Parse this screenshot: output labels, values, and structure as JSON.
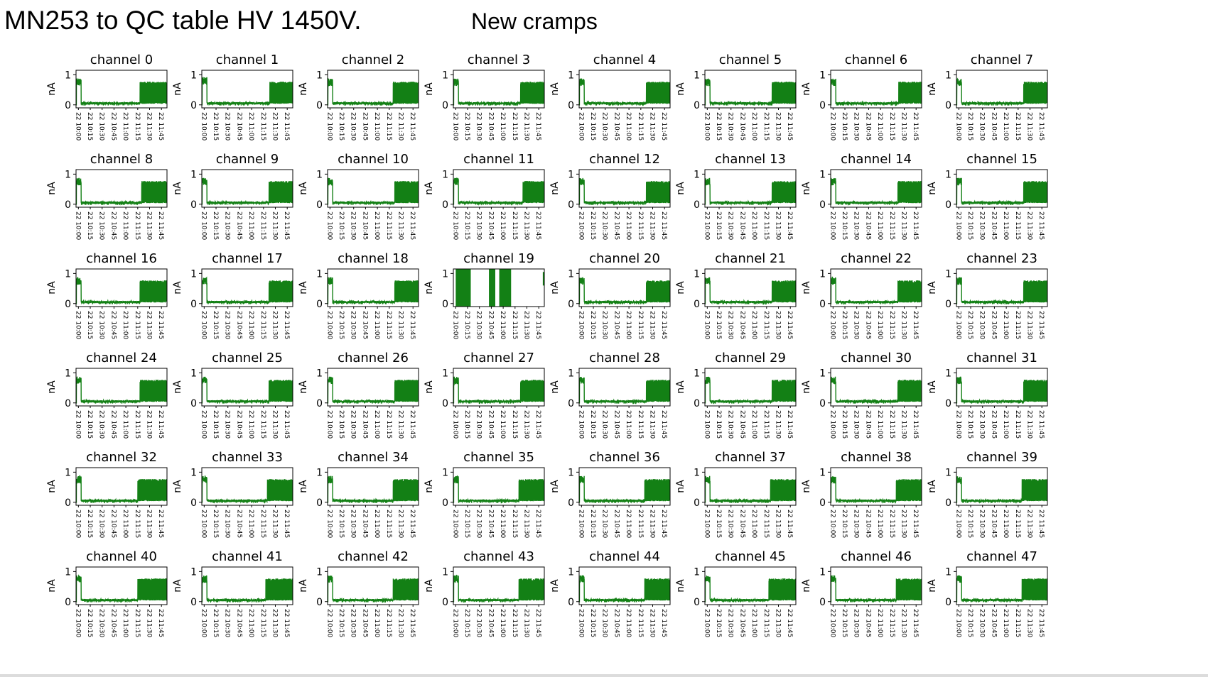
{
  "slide": {
    "title": "MN253 to QC table HV 1450V.",
    "subtitle": "New cramps"
  },
  "chart_data": {
    "type": "line",
    "layout": "grid 6 rows x 8 columns of small multiples",
    "series_color": "#138015",
    "ylabel": "nA",
    "ylim": [
      -0.1,
      1.15
    ],
    "yticks": [
      0,
      1
    ],
    "xticks": [
      "22 10:00",
      "22 10:15",
      "22 10:30",
      "22 10:45",
      "22 11:00",
      "22 11:15",
      "22 11:30",
      "22 11:45"
    ],
    "xlim": [
      "22 09:57",
      "22 11:52"
    ],
    "panels": [
      {
        "title": "channel 0",
        "profile": {
          "start_level": 0.75,
          "start_until": "22 10:02",
          "baseline": 0.05,
          "step_at": "22 11:18",
          "high_level": 0.72
        }
      },
      {
        "title": "channel 1",
        "profile": {
          "start_level": 0.8,
          "start_until": "22 10:02",
          "baseline": 0.05,
          "step_at": "22 11:23",
          "high_level": 0.72
        }
      },
      {
        "title": "channel 2",
        "profile": {
          "start_level": 0.75,
          "start_until": "22 10:02",
          "baseline": 0.05,
          "step_at": "22 11:20",
          "high_level": 0.72
        }
      },
      {
        "title": "channel 3",
        "profile": {
          "start_level": 0.75,
          "start_until": "22 10:02",
          "baseline": 0.05,
          "step_at": "22 11:22",
          "high_level": 0.72
        }
      },
      {
        "title": "channel 4",
        "profile": {
          "start_level": 0.75,
          "start_until": "22 10:02",
          "baseline": 0.05,
          "step_at": "22 11:22",
          "high_level": 0.72
        }
      },
      {
        "title": "channel 5",
        "profile": {
          "start_level": 0.75,
          "start_until": "22 10:02",
          "baseline": 0.05,
          "step_at": "22 11:22",
          "high_level": 0.72
        }
      },
      {
        "title": "channel 6",
        "profile": {
          "start_level": 0.75,
          "start_until": "22 10:02",
          "baseline": 0.05,
          "step_at": "22 11:23",
          "high_level": 0.72
        }
      },
      {
        "title": "channel 7",
        "profile": {
          "start_level": 0.75,
          "start_until": "22 10:02",
          "baseline": 0.05,
          "step_at": "22 11:22",
          "high_level": 0.72
        }
      },
      {
        "title": "channel 8",
        "profile": {
          "start_level": 0.75,
          "start_until": "22 10:02",
          "baseline": 0.05,
          "step_at": "22 11:20",
          "high_level": 0.72
        }
      },
      {
        "title": "channel 9",
        "profile": {
          "start_level": 0.75,
          "start_until": "22 10:02",
          "baseline": 0.05,
          "step_at": "22 11:22",
          "high_level": 0.72
        }
      },
      {
        "title": "channel 10",
        "profile": {
          "start_level": 0.75,
          "start_until": "22 10:02",
          "baseline": 0.05,
          "step_at": "22 11:22",
          "high_level": 0.72
        }
      },
      {
        "title": "channel 11",
        "profile": {
          "start_level": 0.75,
          "start_until": "22 10:02",
          "baseline": 0.05,
          "step_at": "22 11:25",
          "high_level": 0.72
        }
      },
      {
        "title": "channel 12",
        "profile": {
          "start_level": 0.75,
          "start_until": "22 10:02",
          "baseline": 0.05,
          "step_at": "22 11:22",
          "high_level": 0.72
        }
      },
      {
        "title": "channel 13",
        "profile": {
          "start_level": 0.75,
          "start_until": "22 10:02",
          "baseline": 0.05,
          "step_at": "22 11:22",
          "high_level": 0.72
        }
      },
      {
        "title": "channel 14",
        "profile": {
          "start_level": 0.75,
          "start_until": "22 10:02",
          "baseline": 0.05,
          "step_at": "22 11:22",
          "high_level": 0.72
        }
      },
      {
        "title": "channel 15",
        "profile": {
          "start_level": 0.75,
          "start_until": "22 10:02",
          "baseline": 0.05,
          "step_at": "22 11:22",
          "high_level": 0.72
        }
      },
      {
        "title": "channel 16",
        "profile": {
          "start_level": 0.75,
          "start_until": "22 10:02",
          "baseline": 0.05,
          "step_at": "22 11:18",
          "high_level": 0.72
        }
      },
      {
        "title": "channel 17",
        "profile": {
          "start_level": 0.75,
          "start_until": "22 10:02",
          "baseline": 0.05,
          "step_at": "22 11:22",
          "high_level": 0.72
        }
      },
      {
        "title": "channel 18",
        "profile": {
          "start_level": 0.75,
          "start_until": "22 10:02",
          "baseline": 0.05,
          "step_at": "22 11:22",
          "high_level": 0.72
        }
      },
      {
        "title": "channel 19",
        "profile": {
          "saturated_blocks": [
            [
              "22 10:00",
              "22 10:19"
            ],
            [
              "22 10:42",
              "22 10:50"
            ],
            [
              "22 10:55",
              "22 11:10"
            ]
          ],
          "spike_at": "22 11:51"
        }
      },
      {
        "title": "channel 20",
        "profile": {
          "start_level": 0.75,
          "start_until": "22 10:02",
          "baseline": 0.05,
          "step_at": "22 11:22",
          "high_level": 0.72
        }
      },
      {
        "title": "channel 21",
        "profile": {
          "start_level": 0.75,
          "start_until": "22 10:02",
          "baseline": 0.05,
          "step_at": "22 11:22",
          "high_level": 0.72
        }
      },
      {
        "title": "channel 22",
        "profile": {
          "start_level": 0.75,
          "start_until": "22 10:02",
          "baseline": 0.05,
          "step_at": "22 11:22",
          "high_level": 0.72
        }
      },
      {
        "title": "channel 23",
        "profile": {
          "start_level": 0.75,
          "start_until": "22 10:02",
          "baseline": 0.05,
          "step_at": "22 11:22",
          "high_level": 0.72
        }
      },
      {
        "title": "channel 24",
        "profile": {
          "start_level": 0.75,
          "start_until": "22 10:02",
          "baseline": 0.05,
          "step_at": "22 11:18",
          "high_level": 0.72
        }
      },
      {
        "title": "channel 25",
        "profile": {
          "start_level": 0.75,
          "start_until": "22 10:02",
          "baseline": 0.05,
          "step_at": "22 11:22",
          "high_level": 0.72
        }
      },
      {
        "title": "channel 26",
        "profile": {
          "start_level": 0.75,
          "start_until": "22 10:02",
          "baseline": 0.05,
          "step_at": "22 11:22",
          "high_level": 0.72
        }
      },
      {
        "title": "channel 27",
        "profile": {
          "start_level": 0.75,
          "start_until": "22 10:02",
          "baseline": 0.05,
          "step_at": "22 11:22",
          "high_level": 0.72
        }
      },
      {
        "title": "channel 28",
        "profile": {
          "start_level": 0.75,
          "start_until": "22 10:02",
          "baseline": 0.05,
          "step_at": "22 11:22",
          "high_level": 0.72
        }
      },
      {
        "title": "channel 29",
        "profile": {
          "start_level": 0.75,
          "start_until": "22 10:02",
          "baseline": 0.05,
          "step_at": "22 11:22",
          "high_level": 0.72
        }
      },
      {
        "title": "channel 30",
        "profile": {
          "start_level": 0.75,
          "start_until": "22 10:02",
          "baseline": 0.05,
          "step_at": "22 11:22",
          "high_level": 0.72
        }
      },
      {
        "title": "channel 31",
        "profile": {
          "start_level": 0.75,
          "start_until": "22 10:02",
          "baseline": 0.05,
          "step_at": "22 11:22",
          "high_level": 0.72
        }
      },
      {
        "title": "channel 32",
        "profile": {
          "start_level": 0.75,
          "start_until": "22 10:02",
          "baseline": 0.05,
          "step_at": "22 11:15",
          "high_level": 0.72
        }
      },
      {
        "title": "channel 33",
        "profile": {
          "start_level": 0.75,
          "start_until": "22 10:02",
          "baseline": 0.05,
          "step_at": "22 11:20",
          "high_level": 0.72
        }
      },
      {
        "title": "channel 34",
        "profile": {
          "start_level": 0.75,
          "start_until": "22 10:02",
          "baseline": 0.05,
          "step_at": "22 11:20",
          "high_level": 0.72
        }
      },
      {
        "title": "channel 35",
        "profile": {
          "start_level": 0.75,
          "start_until": "22 10:02",
          "baseline": 0.05,
          "step_at": "22 11:20",
          "high_level": 0.72
        }
      },
      {
        "title": "channel 36",
        "profile": {
          "start_level": 0.75,
          "start_until": "22 10:02",
          "baseline": 0.05,
          "step_at": "22 11:20",
          "high_level": 0.72
        }
      },
      {
        "title": "channel 37",
        "profile": {
          "start_level": 0.75,
          "start_until": "22 10:02",
          "baseline": 0.05,
          "step_at": "22 11:20",
          "high_level": 0.72
        }
      },
      {
        "title": "channel 38",
        "profile": {
          "start_level": 0.75,
          "start_until": "22 10:02",
          "baseline": 0.05,
          "step_at": "22 11:20",
          "high_level": 0.72
        }
      },
      {
        "title": "channel 39",
        "profile": {
          "start_level": 0.75,
          "start_until": "22 10:02",
          "baseline": 0.05,
          "step_at": "22 11:20",
          "high_level": 0.72
        }
      },
      {
        "title": "channel 40",
        "profile": {
          "start_level": 0.75,
          "start_until": "22 10:02",
          "baseline": 0.05,
          "step_at": "22 11:15",
          "high_level": 0.72
        }
      },
      {
        "title": "channel 41",
        "profile": {
          "start_level": 0.75,
          "start_until": "22 10:02",
          "baseline": 0.05,
          "step_at": "22 11:18",
          "high_level": 0.72
        }
      },
      {
        "title": "channel 42",
        "profile": {
          "start_level": 0.75,
          "start_until": "22 10:02",
          "baseline": 0.05,
          "step_at": "22 11:20",
          "high_level": 0.72
        }
      },
      {
        "title": "channel 43",
        "profile": {
          "start_level": 0.75,
          "start_until": "22 10:02",
          "baseline": 0.05,
          "step_at": "22 11:20",
          "high_level": 0.72
        }
      },
      {
        "title": "channel 44",
        "profile": {
          "start_level": 0.75,
          "start_until": "22 10:02",
          "baseline": 0.05,
          "step_at": "22 11:20",
          "high_level": 0.72
        }
      },
      {
        "title": "channel 45",
        "profile": {
          "start_level": 0.75,
          "start_until": "22 10:02",
          "baseline": 0.05,
          "step_at": "22 11:18",
          "high_level": 0.72
        }
      },
      {
        "title": "channel 46",
        "profile": {
          "start_level": 0.75,
          "start_until": "22 10:02",
          "baseline": 0.05,
          "step_at": "22 11:20",
          "high_level": 0.72
        }
      },
      {
        "title": "channel 47",
        "profile": {
          "start_level": 0.75,
          "start_until": "22 10:02",
          "baseline": 0.05,
          "step_at": "22 11:20",
          "high_level": 0.72
        }
      }
    ]
  }
}
